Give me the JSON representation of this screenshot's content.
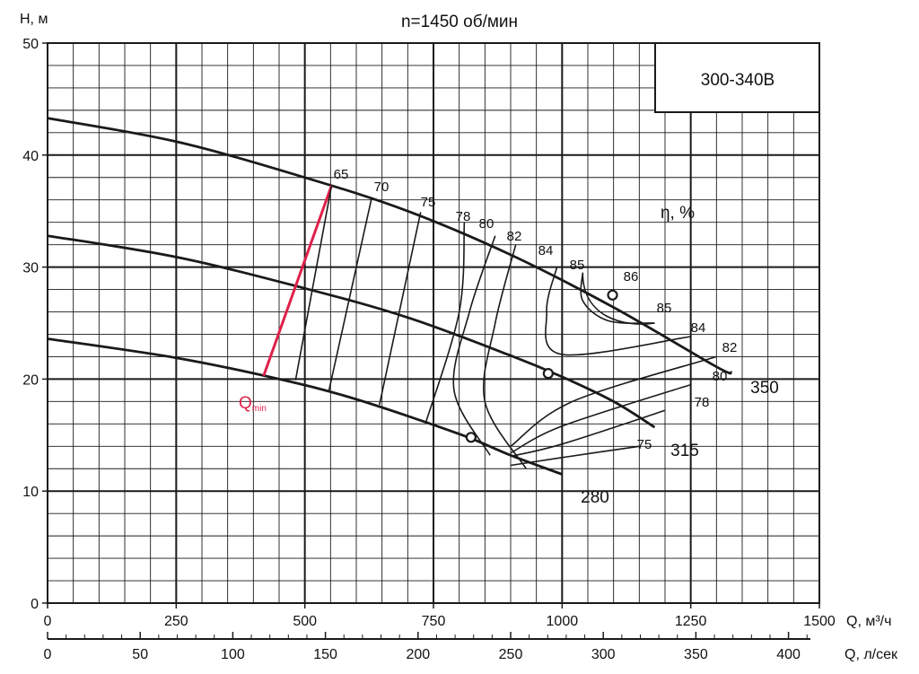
{
  "header": {
    "title": "n=1450 об/мин",
    "model_label": "300-340В"
  },
  "colors": {
    "grid": "#1a1a1a",
    "curve": "#1a1a1a",
    "qmin": "#e0204a"
  },
  "chart_data": {
    "type": "line",
    "title": "n=1450 об/мин",
    "ylabel": "H, м",
    "xlabel": "Q, м³/ч",
    "x2label": "Q, л/сек",
    "xlim": [
      0,
      1500
    ],
    "ylim": [
      0,
      50
    ],
    "x_ticks": [
      0,
      250,
      500,
      750,
      1000,
      1250,
      1500
    ],
    "y_ticks": [
      0,
      10,
      20,
      30,
      40,
      50
    ],
    "x2_ticks": [
      0,
      50,
      100,
      150,
      200,
      250,
      300,
      350,
      400
    ],
    "x2_scale": "л/сек = м³/ч / 3.6",
    "grid": true,
    "efficiency_label": "η, %",
    "series": [
      {
        "name": "350",
        "x": [
          0,
          250,
          500,
          700,
          900,
          1100,
          1300,
          1330
        ],
        "y": [
          43.3,
          41.2,
          38.0,
          35.0,
          31.1,
          26.4,
          21.1,
          20.6
        ]
      },
      {
        "name": "315",
        "x": [
          0,
          250,
          500,
          700,
          900,
          1000,
          1100,
          1180
        ],
        "y": [
          32.8,
          30.9,
          28.1,
          25.5,
          22.1,
          20.2,
          18.0,
          15.7
        ]
      },
      {
        "name": "280",
        "x": [
          0,
          250,
          450,
          600,
          800,
          900,
          1000
        ],
        "y": [
          23.6,
          21.9,
          20.0,
          18.2,
          15.1,
          13.2,
          11.5
        ]
      }
    ],
    "efficiency_contours": [
      {
        "label": "65",
        "x": [
          482,
          552
        ],
        "y": [
          19.9,
          37.3
        ]
      },
      {
        "label": "70",
        "x": [
          547,
          630
        ],
        "y": [
          19.0,
          36.2
        ]
      },
      {
        "label": "75",
        "x": [
          645,
          725
        ],
        "y": [
          17.7,
          34.9
        ]
      },
      {
        "label": "78",
        "x": [
          735,
          800,
          810
        ],
        "y": [
          16.1,
          26.0,
          34.0
        ]
      },
      {
        "label": "80",
        "x": [
          860,
          790,
          820,
          870
        ],
        "y": [
          13.2,
          19.0,
          26.0,
          32.8
        ]
      },
      {
        "label": "82",
        "x": [
          930,
          850,
          870,
          910
        ],
        "y": [
          12.0,
          18.0,
          25.0,
          32.0
        ]
      },
      {
        "label": "84",
        "x": [
          1250,
          1000,
          970,
          990
        ],
        "y": [
          23.8,
          22.2,
          26.0,
          30.0
        ]
      },
      {
        "label": "85",
        "x": [
          1180,
          1090,
          1040,
          1040
        ],
        "y": [
          25.0,
          25.2,
          27.0,
          29.5
        ]
      },
      {
        "label": "82",
        "x": [
          1300,
          1020,
          900
        ],
        "y": [
          22.0,
          18.0,
          14.0
        ]
      },
      {
        "label": "80",
        "x": [
          1250,
          1000,
          900
        ],
        "y": [
          19.5,
          15.8,
          13.4
        ]
      },
      {
        "label": "78",
        "x": [
          1200,
          1000,
          900
        ],
        "y": [
          17.2,
          14.2,
          13.1
        ]
      },
      {
        "label": "75",
        "x": [
          1150,
          1000,
          900
        ],
        "y": [
          14.0,
          13.0,
          12.3
        ]
      }
    ],
    "bep_points": [
      {
        "x": 1098,
        "y": 27.5
      },
      {
        "x": 973,
        "y": 20.5
      },
      {
        "x": 823,
        "y": 14.8
      }
    ],
    "qmin": {
      "label": "Q",
      "sub": "min",
      "x": [
        420,
        552
      ],
      "y": [
        20.3,
        37.3
      ]
    },
    "series_labels": [
      "350",
      "315",
      "280"
    ],
    "eff_labels_on_350": [
      "65",
      "70",
      "75",
      "78",
      "80",
      "82",
      "84",
      "85",
      "86"
    ],
    "eff_labels_right": [
      "85",
      "84",
      "82",
      "80",
      "78",
      "75"
    ]
  }
}
